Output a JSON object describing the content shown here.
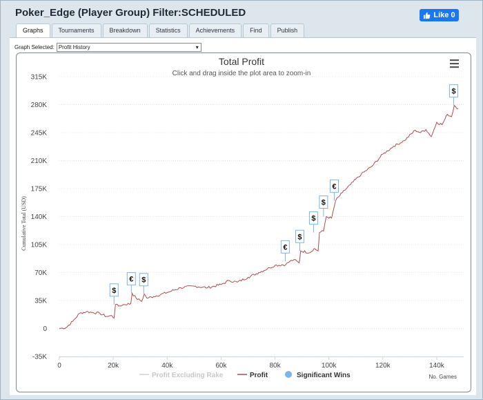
{
  "window": {
    "title": "Poker_Edge (Player Group) Filter:SCHEDULED",
    "like_label": "Like 0"
  },
  "tabs": [
    "Graphs",
    "Tournaments",
    "Breakdown",
    "Statistics",
    "Achievements",
    "Find",
    "Publish"
  ],
  "active_tab": "Graphs",
  "graph_selector": {
    "label": "Graph Selected:",
    "value": "Profit History"
  },
  "colors": {
    "profit_line": "#b04c4c",
    "excluding_rake_line": "#d0d0d0",
    "significant_wins": "#7cb5ec",
    "title_color": "#333333"
  },
  "chart_data": {
    "type": "line",
    "title": "Total Profit",
    "subtitle": "Click and drag inside the plot area to zoom-in",
    "ylabel": "Cumulative Total (USD)",
    "xlabel": "No. Games",
    "xlim": [
      0,
      150000
    ],
    "ylim": [
      -35000,
      315000
    ],
    "x_ticks": [
      "0",
      "20k",
      "40k",
      "60k",
      "80k",
      "100k",
      "120k",
      "140k"
    ],
    "y_ticks": [
      "315K",
      "280K",
      "245K",
      "210K",
      "175K",
      "140K",
      "105K",
      "70K",
      "35K",
      "0",
      "-35K"
    ],
    "grid": true,
    "legend": [
      "Profit Excluding Rake",
      "Profit",
      "Significant Wins"
    ],
    "series": [
      {
        "name": "Profit",
        "x": [
          0,
          2500,
          5000,
          7500,
          10000,
          12500,
          15000,
          17500,
          19500,
          20300,
          20800,
          22000,
          24000,
          26500,
          27000,
          28500,
          30500,
          31500,
          32500,
          35000,
          40000,
          45000,
          50000,
          55000,
          60000,
          63000,
          66000,
          70000,
          74000,
          78000,
          80000,
          84000,
          85500,
          87000,
          89000,
          89500,
          93000,
          94500,
          96000,
          96500,
          98000,
          99000,
          101000,
          102500,
          105000,
          108000,
          112000,
          116000,
          120000,
          124000,
          128000,
          132000,
          134000,
          136000,
          138000,
          140000,
          142000,
          144000,
          145500,
          146500,
          148000
        ],
        "y": [
          0,
          1000,
          9000,
          19000,
          21000,
          20000,
          19000,
          15000,
          16000,
          13000,
          30000,
          28000,
          30000,
          31000,
          44000,
          38000,
          34000,
          43000,
          38000,
          40000,
          45000,
          51000,
          53000,
          51000,
          55000,
          60000,
          58000,
          64000,
          70000,
          76000,
          79000,
          80000,
          84000,
          86000,
          82000,
          97000,
          95000,
          100000,
          97000,
          120000,
          122000,
          140000,
          138000,
          160000,
          170000,
          180000,
          193000,
          203000,
          218000,
          228000,
          235000,
          248000,
          245000,
          249000,
          240000,
          258000,
          255000,
          268000,
          265000,
          279000,
          275000
        ]
      }
    ],
    "significant_wins": [
      {
        "x": 20300,
        "y": 30000,
        "symbol": "$"
      },
      {
        "x": 26700,
        "y": 44000,
        "symbol": "€"
      },
      {
        "x": 31300,
        "y": 43000,
        "symbol": "$"
      },
      {
        "x": 83800,
        "y": 84000,
        "symbol": "€"
      },
      {
        "x": 89200,
        "y": 97000,
        "symbol": "$"
      },
      {
        "x": 94300,
        "y": 120000,
        "symbol": "$"
      },
      {
        "x": 98000,
        "y": 140000,
        "symbol": "$"
      },
      {
        "x": 102000,
        "y": 160000,
        "symbol": "€"
      },
      {
        "x": 146300,
        "y": 279000,
        "symbol": "$"
      }
    ]
  }
}
